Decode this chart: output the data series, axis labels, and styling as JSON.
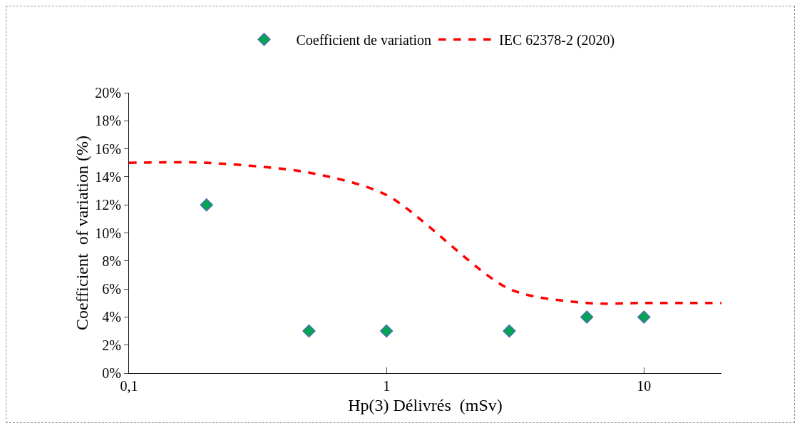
{
  "chart_data": {
    "type": "scatter",
    "xlabel": "Hp(3) Délivrés  (mSv)",
    "ylabel": "Coefficient  of variation (%)",
    "log": "x",
    "xlim": [
      0.1,
      20
    ],
    "xticks": [
      {
        "value": 0.1,
        "label": "0,1"
      },
      1,
      10
    ],
    "ylim": [
      0,
      20
    ],
    "yticks": [
      {
        "value": 0,
        "label": "0%"
      },
      {
        "value": 2,
        "label": "2%"
      },
      {
        "value": 4,
        "label": "4%"
      },
      {
        "value": 6,
        "label": "6%"
      },
      {
        "value": 8,
        "label": "8%"
      },
      {
        "value": 10,
        "label": "10%"
      },
      {
        "value": 12,
        "label": "12%"
      },
      {
        "value": 14,
        "label": "14%"
      },
      {
        "value": 16,
        "label": "16%"
      },
      {
        "value": 18,
        "label": "18%"
      },
      {
        "value": 20,
        "label": "20%"
      }
    ],
    "grid": false,
    "legend": "top",
    "series": [
      {
        "name": "Coefficient de variation",
        "marker": "diamond",
        "color": "#00a651",
        "x": [
          0.2,
          0.5,
          1,
          3,
          6,
          10
        ],
        "values": [
          12,
          3,
          3,
          3,
          4,
          4
        ]
      },
      {
        "name": "IEC 62378-2 (2020)",
        "type": "line",
        "marker": "none",
        "line_style": "dashed",
        "color": "#ff0000",
        "x": [
          0.1,
          0.2,
          0.5,
          1,
          3,
          6,
          10,
          20
        ],
        "values": [
          15,
          15,
          14.3,
          12.7,
          6,
          5,
          5,
          5
        ]
      }
    ]
  }
}
